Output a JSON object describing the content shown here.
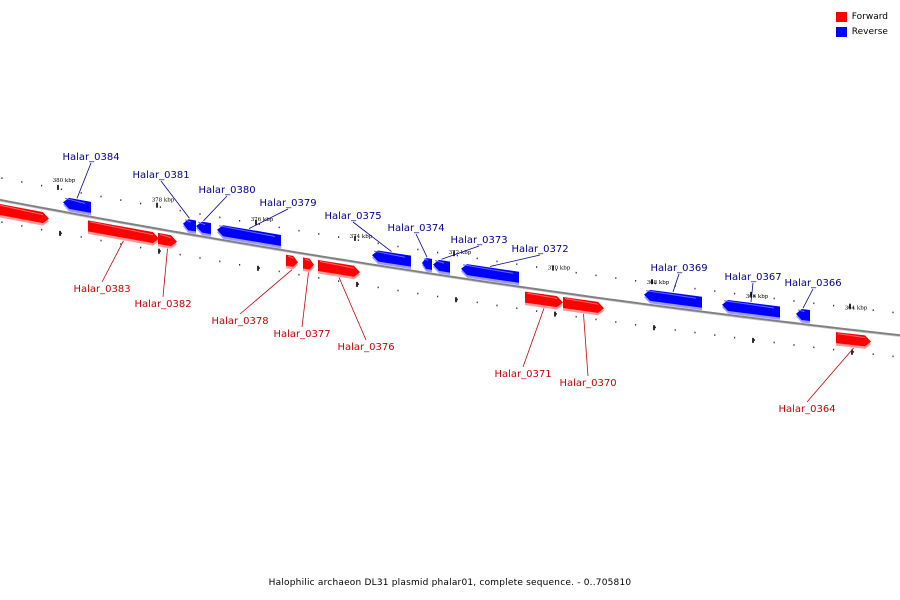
{
  "legend": {
    "items": [
      {
        "label": "Forward",
        "color": "#ff0000"
      },
      {
        "label": "Reverse",
        "color": "#0000ff"
      }
    ]
  },
  "colors": {
    "forward": "#ff0000",
    "forward_label": "#cc0000",
    "reverse": "#0000ff",
    "reverse_label": "#000099",
    "backbone": "#808080"
  },
  "footer": "Halophilic archaeon DL31 plasmid phalar01, complete sequence. - 0..705810",
  "scale": {
    "tick_labels": [
      "380 kbp",
      "378 kbp",
      "376 kbp",
      "374 kbp",
      "372 kbp",
      "370 kbp",
      "368 kbp",
      "366 kbp",
      "364 kbp"
    ]
  },
  "genes": [
    {
      "name": "",
      "strand": "forward"
    },
    {
      "name": "Halar_0384",
      "strand": "reverse"
    },
    {
      "name": "Halar_0383",
      "strand": "forward"
    },
    {
      "name": "Halar_0382",
      "strand": "forward"
    },
    {
      "name": "Halar_0381",
      "strand": "reverse"
    },
    {
      "name": "Halar_0380",
      "strand": "reverse"
    },
    {
      "name": "Halar_0379",
      "strand": "reverse"
    },
    {
      "name": "Halar_0378",
      "strand": "forward"
    },
    {
      "name": "Halar_0377",
      "strand": "forward"
    },
    {
      "name": "Halar_0376",
      "strand": "forward"
    },
    {
      "name": "Halar_0375",
      "strand": "reverse"
    },
    {
      "name": "Halar_0374",
      "strand": "reverse"
    },
    {
      "name": "Halar_0373",
      "strand": "reverse"
    },
    {
      "name": "Halar_0372",
      "strand": "reverse"
    },
    {
      "name": "Halar_0371",
      "strand": "forward"
    },
    {
      "name": "Halar_0370",
      "strand": "forward"
    },
    {
      "name": "Halar_0369",
      "strand": "reverse"
    },
    {
      "name": "Halar_0367",
      "strand": "reverse"
    },
    {
      "name": "Halar_0366",
      "strand": "reverse"
    },
    {
      "name": "Halar_0364",
      "strand": "forward"
    }
  ]
}
